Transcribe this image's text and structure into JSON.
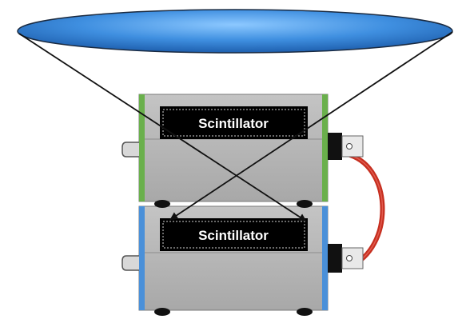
{
  "diagram": {
    "detectors": [
      {
        "label": "Scintillator",
        "side_color": "#6ab04c"
      },
      {
        "label": "Scintillator",
        "side_color": "#4a90d9"
      }
    ],
    "colors": {
      "dish_fill": "#4a90e2",
      "box_body": "#b5b5b5",
      "label_bg": "#000000",
      "cable": "#d93a2b"
    },
    "icons": {
      "dish": "sky-acceptance-ellipse-icon",
      "cable": "coincidence-cable-icon",
      "connector": "signal-connector-icon",
      "handle": "box-handle-icon"
    }
  }
}
